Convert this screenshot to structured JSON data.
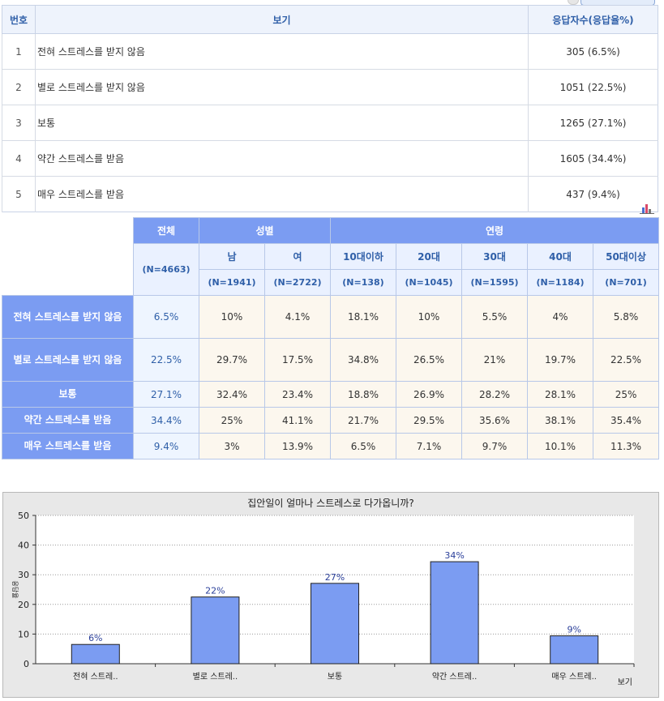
{
  "top_table": {
    "headers": [
      "번호",
      "보기",
      "응답자수(응답율%)"
    ],
    "rows": [
      {
        "num": "1",
        "option": "전혀 스트레스를 받지 않음",
        "count": "305 (6.5%)"
      },
      {
        "num": "2",
        "option": "별로 스트레스를 받지 않음",
        "count": "1051 (22.5%)"
      },
      {
        "num": "3",
        "option": "보통",
        "count": "1265 (27.1%)"
      },
      {
        "num": "4",
        "option": "약간 스트레스를 받음",
        "count": "1605 (34.4%)"
      },
      {
        "num": "5",
        "option": "매우 스트레스를 받음",
        "count": "437 (9.4%)"
      }
    ]
  },
  "cross_table": {
    "total_label": "전체",
    "total_n": "(N=4663)",
    "gender_label": "성별",
    "age_label": "연령",
    "subgroups": [
      {
        "label": "남",
        "n": "(N=1941)"
      },
      {
        "label": "여",
        "n": "(N=2722)"
      },
      {
        "label": "10대이하",
        "n": "(N=138)"
      },
      {
        "label": "20대",
        "n": "(N=1045)"
      },
      {
        "label": "30대",
        "n": "(N=1595)"
      },
      {
        "label": "40대",
        "n": "(N=1184)"
      },
      {
        "label": "50대이상",
        "n": "(N=701)"
      }
    ],
    "rows": [
      {
        "label": "전혀 스트레스를 받지 않음",
        "total": "6.5%",
        "values": [
          "10%",
          "4.1%",
          "18.1%",
          "10%",
          "5.5%",
          "4%",
          "5.8%"
        ]
      },
      {
        "label": "별로 스트레스를 받지 않음",
        "total": "22.5%",
        "values": [
          "29.7%",
          "17.5%",
          "34.8%",
          "26.5%",
          "21%",
          "19.7%",
          "22.5%"
        ]
      },
      {
        "label": "보통",
        "total": "27.1%",
        "values": [
          "32.4%",
          "23.4%",
          "18.8%",
          "26.9%",
          "28.2%",
          "28.1%",
          "25%"
        ]
      },
      {
        "label": "약간 스트레스를 받음",
        "total": "34.4%",
        "values": [
          "25%",
          "41.1%",
          "21.7%",
          "29.5%",
          "35.6%",
          "38.1%",
          "35.4%"
        ]
      },
      {
        "label": "매우 스트레스를 받음",
        "total": "9.4%",
        "values": [
          "3%",
          "13.9%",
          "6.5%",
          "7.1%",
          "9.7%",
          "10.1%",
          "11.3%"
        ]
      }
    ]
  },
  "icons": {
    "chart_toggle": "bar-chart-icon"
  },
  "colors": {
    "header_blue": "#7b9cf2",
    "bar_fill": "#7b9cf2",
    "header_text": "#2f5fa8"
  },
  "chart_data": {
    "type": "bar",
    "title": "집안일이 얼마나 스트레스로 다가옵니까?",
    "xlabel": "보기",
    "ylabel": "응답율",
    "ylim": [
      0,
      50
    ],
    "yticks": [
      0,
      10,
      20,
      30,
      40,
      50
    ],
    "categories": [
      "전혀 스트레..",
      "별로 스트레..",
      "보통",
      "약간 스트레..",
      "매우 스트레.."
    ],
    "values": [
      6.5,
      22.5,
      27.1,
      34.4,
      9.4
    ],
    "data_labels": [
      "6%",
      "22%",
      "27%",
      "34%",
      "9%"
    ],
    "grid": true
  }
}
